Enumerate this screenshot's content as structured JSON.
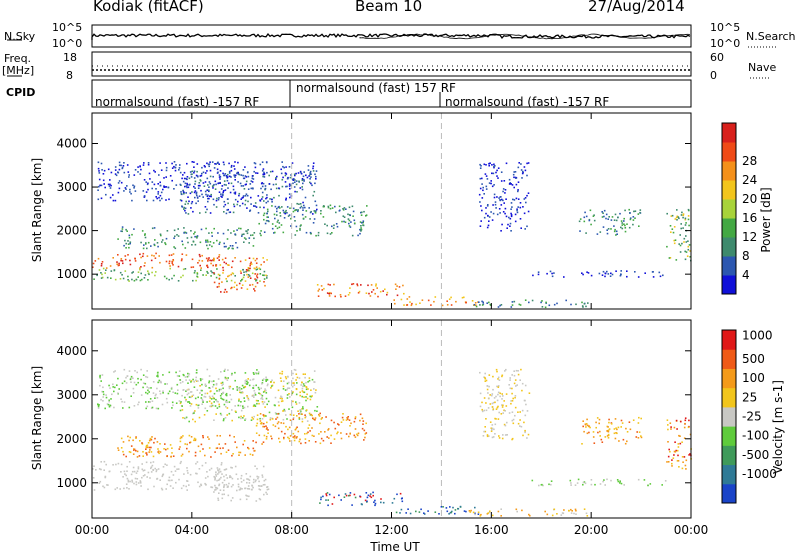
{
  "header": {
    "site": "Kodiak (fitACF)",
    "beam": "Beam 10",
    "date": "27/Aug/2014"
  },
  "panels": {
    "nsky": {
      "label": "N.Sky",
      "left_ticks": [
        "10^5",
        "10^0"
      ],
      "right_ticks": [
        "10^5",
        "10^0"
      ],
      "right_label": "N.Search"
    },
    "freq": {
      "label1": "Freq.",
      "label2": "[MHz]",
      "left_ticks": [
        "18",
        "8"
      ],
      "right_ticks": [
        "60",
        "0"
      ],
      "right_label": "Nave"
    },
    "cpid": {
      "label": "CPID",
      "segments": [
        "normalsound (fast) -157 RF",
        "normalsound (fast) 157 RF",
        "normalsound (fast) -157 RF"
      ]
    }
  },
  "chart_data": [
    {
      "type": "heatmap",
      "title": "",
      "ylabel": "Slant Range [km]",
      "xlabel": "",
      "x_ticks": [
        "00:00",
        "04:00",
        "08:00",
        "12:00",
        "16:00",
        "20:00",
        "00:00"
      ],
      "y_ticks": [
        1000,
        2000,
        3000,
        4000
      ],
      "ylim": [
        200,
        4700
      ],
      "xlim_hours": [
        0,
        24
      ],
      "colorbar": {
        "label": "Power [dB]",
        "ticks": [
          "4",
          "8",
          "12",
          "16",
          "20",
          "24",
          "28"
        ],
        "colors": [
          "#1010d8",
          "#2c57b0",
          "#3e8a6d",
          "#43a843",
          "#a8d33a",
          "#f2c51c",
          "#f4901a",
          "#ef4a17",
          "#d8201c"
        ]
      }
    },
    {
      "type": "heatmap",
      "title": "",
      "ylabel": "Slant Range [km]",
      "xlabel": "Time UT",
      "x_ticks": [
        "00:00",
        "04:00",
        "08:00",
        "12:00",
        "16:00",
        "20:00",
        "00:00"
      ],
      "y_ticks": [
        1000,
        2000,
        3000,
        4000
      ],
      "ylim": [
        200,
        4700
      ],
      "xlim_hours": [
        0,
        24
      ],
      "colorbar": {
        "label": "Velocity [m s-1]",
        "ticks": [
          "1000",
          "500",
          "100",
          "25",
          "-25",
          "-100",
          "-500",
          "-1000"
        ],
        "colors": [
          "#1a44c8",
          "#2f7a96",
          "#3f9a5a",
          "#5fcb3c",
          "#c8c8c4",
          "#f2c51c",
          "#f49a1a",
          "#ef5a17",
          "#e01818"
        ]
      }
    }
  ]
}
